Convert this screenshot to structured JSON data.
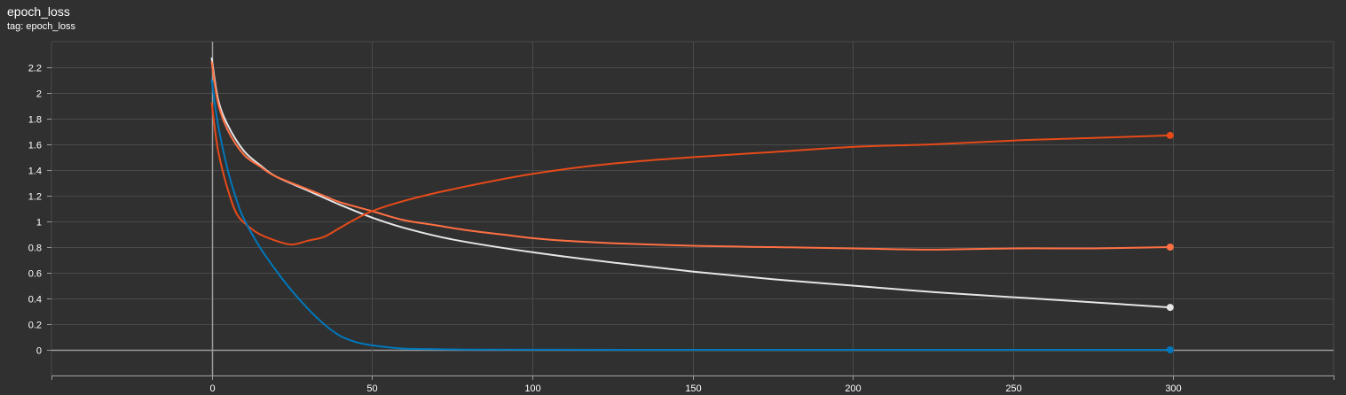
{
  "header": {
    "title": "epoch_loss",
    "tag": "tag: epoch_loss"
  },
  "colors": {
    "background": "#303030",
    "grid": "#4a4a4a",
    "zero_axis": "#9a9a9a"
  },
  "chart_data": {
    "type": "line",
    "xlim": [
      -50,
      350
    ],
    "ylim": [
      -0.2,
      2.4
    ],
    "x_ticks": [
      0,
      50,
      100,
      150,
      200,
      250,
      300
    ],
    "y_ticks": [
      0,
      0.2,
      0.4,
      0.6,
      0.8,
      1,
      1.2,
      1.4,
      1.6,
      1.8,
      2,
      2.2
    ],
    "y_tick_labels": [
      "0",
      "0.2",
      "0.4",
      "0.6",
      "0.8",
      "1",
      "1.2",
      "1.4",
      "1.6",
      "1.8",
      "2",
      "2.2"
    ],
    "grid": true,
    "series": [
      {
        "color": "#e6e6e6",
        "x": [
          0,
          2,
          5,
          10,
          15,
          20,
          30,
          40,
          50,
          60,
          75,
          100,
          125,
          150,
          175,
          200,
          225,
          250,
          275,
          299
        ],
        "values": [
          2.27,
          1.95,
          1.75,
          1.55,
          1.44,
          1.35,
          1.24,
          1.13,
          1.03,
          0.95,
          0.86,
          0.76,
          0.68,
          0.61,
          0.55,
          0.5,
          0.45,
          0.41,
          0.37,
          0.33
        ]
      },
      {
        "color": "#ff7043",
        "x": [
          0,
          2,
          5,
          10,
          15,
          20,
          30,
          35,
          40,
          50,
          60,
          70,
          80,
          90,
          100,
          110,
          125,
          150,
          175,
          200,
          225,
          250,
          275,
          299
        ],
        "values": [
          2.24,
          1.92,
          1.71,
          1.52,
          1.43,
          1.35,
          1.25,
          1.2,
          1.15,
          1.08,
          1.01,
          0.97,
          0.93,
          0.9,
          0.87,
          0.85,
          0.83,
          0.81,
          0.8,
          0.79,
          0.78,
          0.79,
          0.79,
          0.8
        ]
      },
      {
        "color": "#e64a19",
        "x": [
          0,
          2,
          5,
          8,
          12,
          15,
          20,
          25,
          30,
          35,
          40,
          45,
          50,
          60,
          75,
          100,
          125,
          150,
          175,
          200,
          225,
          250,
          275,
          299
        ],
        "values": [
          1.92,
          1.55,
          1.25,
          1.05,
          0.95,
          0.9,
          0.85,
          0.82,
          0.85,
          0.88,
          0.95,
          1.02,
          1.08,
          1.16,
          1.25,
          1.37,
          1.45,
          1.5,
          1.54,
          1.58,
          1.6,
          1.63,
          1.65,
          1.67
        ]
      },
      {
        "color": "#0077bb",
        "x": [
          0,
          2,
          5,
          8,
          10,
          15,
          20,
          25,
          30,
          35,
          40,
          45,
          50,
          55,
          60,
          70,
          80,
          100,
          150,
          200,
          250,
          299
        ],
        "values": [
          2.1,
          1.75,
          1.4,
          1.15,
          1.02,
          0.8,
          0.62,
          0.46,
          0.32,
          0.2,
          0.11,
          0.06,
          0.035,
          0.02,
          0.01,
          0.005,
          0.002,
          0.001,
          0.0,
          0.0,
          0.0,
          0.0
        ]
      }
    ]
  }
}
